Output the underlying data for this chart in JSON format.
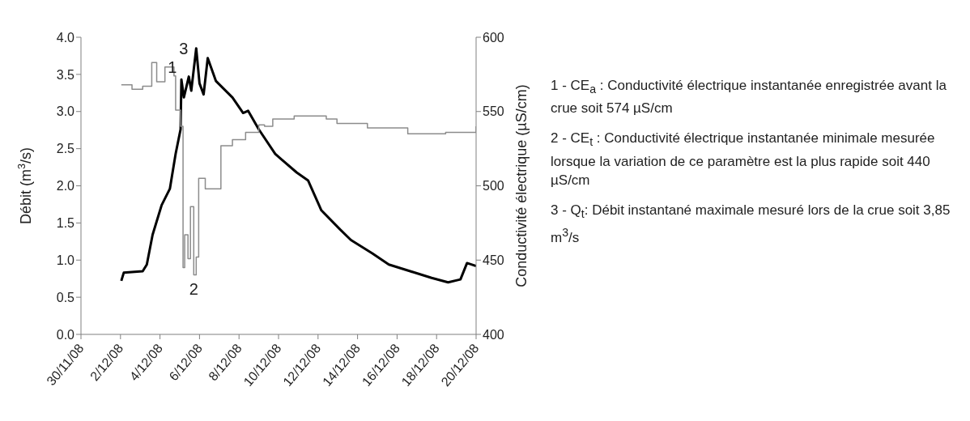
{
  "chart_data": {
    "type": "line",
    "ylabel": "Débit (m$^{3}$/s)",
    "y2label": "Conductivité électrique (µS/cm)",
    "xlim": [
      "--11-30",
      "--12-20"
    ],
    "xticks": [
      {
        "value": "--11-30",
        "label": "30/11/08"
      },
      {
        "value": "--12-02",
        "label": "2/12/08"
      },
      {
        "value": "--12-04",
        "label": "4/12/08"
      },
      {
        "value": "--12-06",
        "label": "6/12/08"
      },
      {
        "value": "--12-08",
        "label": "8/12/08"
      },
      {
        "value": "--12-10",
        "label": "10/12/08"
      },
      {
        "value": "--12-12",
        "label": "12/12/08"
      },
      {
        "value": "--12-14",
        "label": "14/12/08"
      },
      {
        "value": "--12-16",
        "label": "16/12/08"
      },
      {
        "value": "--12-18",
        "label": "18/12/08"
      },
      {
        "value": "--12-20",
        "label": "20/12/08"
      }
    ],
    "ylim": [
      0,
      4
    ],
    "yticks": [
      {
        "value": 0,
        "label": "0.0"
      },
      {
        "value": 0.5,
        "label": "0.5"
      },
      {
        "value": 1,
        "label": "1.0"
      },
      {
        "value": 1.5,
        "label": "1.5"
      },
      {
        "value": 2,
        "label": "2.0"
      },
      {
        "value": 2.5,
        "label": "2.5"
      },
      {
        "value": 3,
        "label": "3.0"
      },
      {
        "value": 3.5,
        "label": "3.5"
      },
      {
        "value": 4,
        "label": "4.0"
      }
    ],
    "y2lim": [
      400,
      600
    ],
    "y2ticks": [
      400,
      450,
      500,
      550,
      600
    ],
    "grid": false,
    "legend": false,
    "marker": "none",
    "line_style": "solid",
    "series": [
      {
        "color": "#000000",
        "x": [
          "--12-02T01:00",
          "--12-02T04:00",
          "--12-03T03:00",
          "--12-03T08:00",
          "--12-03T15:00",
          "--12-04T02:00",
          "--12-04T12:00",
          "--12-04T19:00",
          "--12-05T01:00",
          "--12-05T02:00",
          "--12-05T05:00",
          "--12-05T11:00",
          "--12-05T14:00",
          "--12-05T20:00",
          "--12-06T00:00",
          "--12-06T05:00",
          "--12-06T10:00",
          "--12-06T20:00",
          "--12-07T16:00",
          "--12-08T05:00",
          "--12-08T11:00",
          "--12-09T00:00",
          "--12-09T20:00",
          "--12-10T03:00",
          "--12-10T22:00",
          "--12-11T12:00",
          "--12-12T04:00",
          "--12-13T03:00",
          "--12-13T16:00",
          "--12-14T18:00",
          "--12-15T14:00",
          "--12-16T16:00",
          "--12-17T18:00",
          "--12-18T14:00",
          "--12-19T05:00",
          "--12-19T13:00",
          "--12-20T00:00"
        ],
        "values": [
          0.72,
          0.83,
          0.85,
          0.94,
          1.34,
          1.74,
          1.96,
          2.43,
          2.76,
          3.43,
          3.19,
          3.47,
          3.28,
          3.85,
          3.38,
          3.23,
          3.72,
          3.41,
          3.19,
          2.98,
          3.01,
          2.76,
          2.43,
          2.36,
          2.18,
          2.07,
          1.67,
          1.41,
          1.27,
          1.09,
          0.94,
          0.85,
          0.76,
          0.7,
          0.74,
          0.96,
          0.92
        ]
      },
      {
        "type": "step",
        "axis": "y2",
        "color": "#8c8c8c",
        "x": [
          "--12-02T01:00",
          "--12-02T14:00",
          "--12-03T03:00",
          "--12-03T14:00",
          "--12-03T20:00",
          "--12-04T06:00",
          "--12-04T17:00",
          "--12-04T19:00",
          "--12-05T01:00",
          "--12-05T04:00",
          "--12-05T06:00",
          "--12-05T10:00",
          "--12-05T13:00",
          "--12-05T17:00",
          "--12-05T20:00",
          "--12-05T23:00",
          "--12-06T07:00",
          "--12-07T02:00",
          "--12-07T16:00",
          "--12-08T08:00",
          "--12-09T00:00",
          "--12-09T07:00",
          "--12-09T17:00",
          "--12-10T19:00",
          "--12-12T10:00",
          "--12-12T23:00",
          "--12-14T12:00",
          "--12-16T13:00",
          "--12-18T11:00",
          "--12-20T00:00"
        ],
        "values": [
          568,
          565,
          567,
          583,
          570,
          580,
          574,
          551,
          540,
          445,
          467,
          451,
          486,
          440,
          452,
          505,
          498,
          527,
          531,
          536,
          541,
          540,
          545,
          547,
          545,
          542,
          539,
          535,
          536,
          540
        ]
      }
    ],
    "annotations": [
      {
        "text": "1",
        "x": "--12-04T15:00",
        "y": 3.6
      },
      {
        "text": "2",
        "x": "--12-05T17:00",
        "y": 0.8
      },
      {
        "text": "3",
        "x": "--12-05T20:00",
        "y": 3.85
      },
      "1 - CE$_{a}$ : Conductivité électrique instantanée enregistrée avant la crue soit 574 µS/cm",
      "2 - CE$_{t}$ :  Conductivité électrique instantanée minimale mesurée lorsque la variation de ce paramètre est la plus rapide soit 440 µS/cm",
      "3 - Q$_{t}$: Débit instantané maximale mesuré lors de la crue soit 3,85 m$^{3}$/s"
    ]
  }
}
